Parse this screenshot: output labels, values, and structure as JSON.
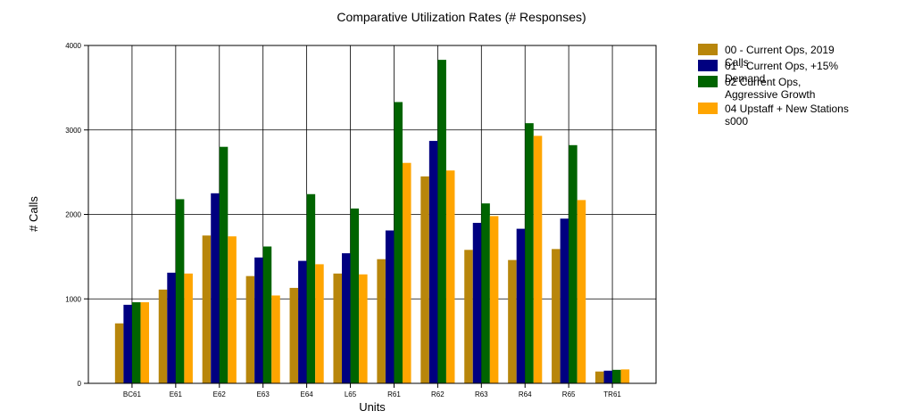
{
  "chart_data": {
    "type": "bar",
    "title": "Comparative Utilization Rates (# Responses)",
    "xlabel": "Units",
    "ylabel": "# Calls",
    "ylim": [
      0,
      4000
    ],
    "yticks": [
      0,
      1000,
      2000,
      3000,
      4000
    ],
    "grid": true,
    "legend_position": "right",
    "categories": [
      "BC61",
      "E61",
      "E62",
      "E63",
      "E64",
      "L65",
      "R61",
      "R62",
      "R63",
      "R64",
      "R65",
      "TR61"
    ],
    "series": [
      {
        "name": "00 - Current Ops, 2019 Calls",
        "color": "#B8860B",
        "values": [
          710,
          1110,
          1750,
          1270,
          1130,
          1300,
          1470,
          2450,
          1580,
          1460,
          1590,
          140
        ]
      },
      {
        "name": "01 - Current Ops, +15% Demand",
        "color": "#000080",
        "values": [
          930,
          1310,
          2250,
          1490,
          1450,
          1540,
          1810,
          2870,
          1900,
          1830,
          1950,
          150
        ]
      },
      {
        "name": "02 Current Ops, Aggressive Growth",
        "color": "#006400",
        "values": [
          960,
          2180,
          2800,
          1620,
          2240,
          2070,
          3330,
          3830,
          2130,
          3080,
          2820,
          160
        ]
      },
      {
        "name": "04 Upstaff + New Stations s000",
        "color": "#FFA500",
        "values": [
          960,
          1300,
          1740,
          1040,
          1410,
          1290,
          2610,
          2520,
          1980,
          2930,
          2170,
          165
        ]
      }
    ]
  }
}
